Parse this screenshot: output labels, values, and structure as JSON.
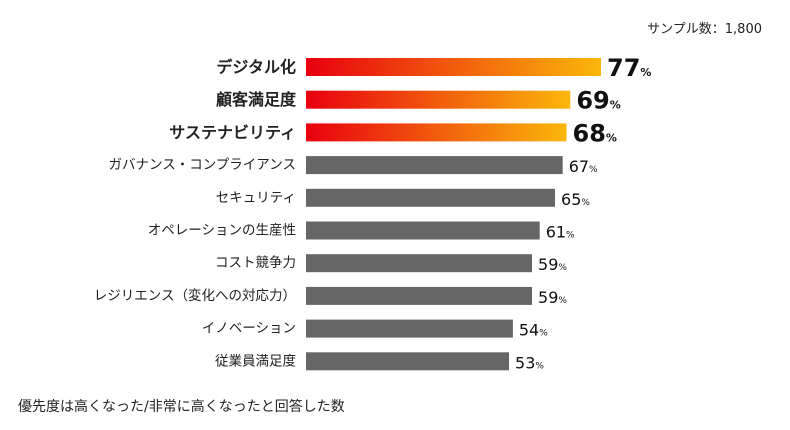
{
  "sample_note": "サンプル数：1,800",
  "footnote": "優先度は高くなった/非常に高くなったと回答した数",
  "colors": {
    "highlight_start": "#e8000f",
    "highlight_end": "#fbb70b",
    "neutral": "#666666"
  },
  "chart_data": {
    "type": "bar",
    "orientation": "horizontal",
    "title": "",
    "xlabel": "",
    "ylabel": "",
    "unit": "%",
    "xlim": [
      0,
      100
    ],
    "categories": [
      "デジタル化",
      "顧客満足度",
      "サステナビリティ",
      "ガバナンス・コンプライアンス",
      "セキュリティ",
      "オペレーションの生産性",
      "コスト競争力",
      "レジリエンス（変化への対応力）",
      "イノベーション",
      "従業員満足度"
    ],
    "values": [
      77,
      69,
      68,
      67,
      65,
      61,
      59,
      59,
      54,
      53
    ],
    "highlighted": [
      true,
      true,
      true,
      false,
      false,
      false,
      false,
      false,
      false,
      false
    ]
  }
}
